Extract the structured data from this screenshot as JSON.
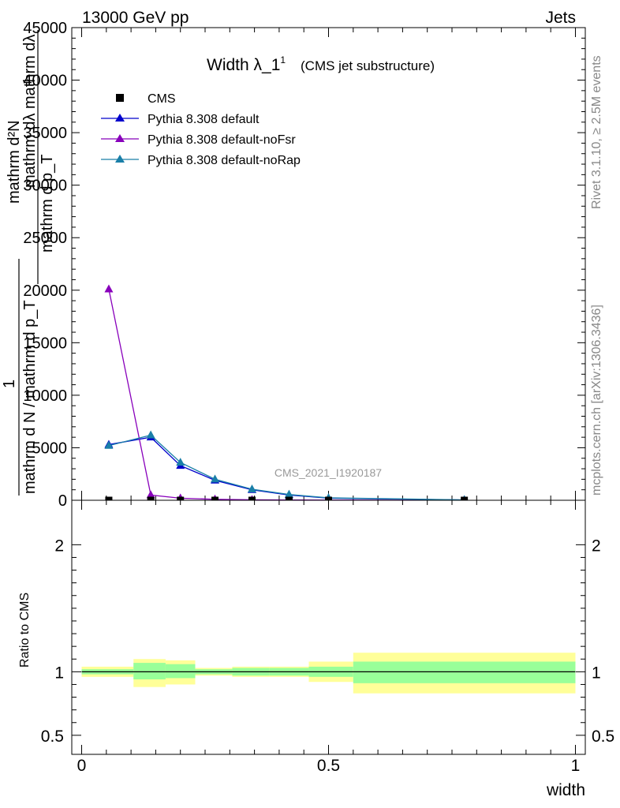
{
  "header": {
    "energy_label": "13000 GeV pp",
    "category_label": "Jets"
  },
  "side_labels": {
    "rivet": "Rivet 3.1.10, ≥ 2.5M events",
    "mcplots": "mcplots.cern.ch [arXiv:1306.3436]"
  },
  "watermark": "CMS_2021_I1920187",
  "chart_data": [
    {
      "type": "line",
      "panel": "main",
      "title": "Width λ_1",
      "title_sup": "1",
      "subtitle": "(CMS jet substructure)",
      "ylabel_numerator": "mathrm d²N",
      "ylabel_numerator_extra": "mathrm dλ mathrm dλ",
      "ylabel_denominator": "mathrm d p_T",
      "ylabel_prefix": "1",
      "ylabel_prefix_denominator": "mathrm d N / mathrm d p_T",
      "ylim": [
        0,
        45000
      ],
      "yticks": [
        "0",
        "5000",
        "10000",
        "15000",
        "20000",
        "25000",
        "30000",
        "35000",
        "40000",
        "45000"
      ],
      "ytick_values": [
        0,
        5000,
        10000,
        15000,
        20000,
        25000,
        30000,
        35000,
        40000,
        45000
      ],
      "xlim": [
        -0.02,
        1.02
      ],
      "legend_position": "top-left",
      "series": [
        {
          "name": "CMS",
          "color": "#000000",
          "marker": "square",
          "x": [
            0.055,
            0.14,
            0.2,
            0.27,
            0.345,
            0.42,
            0.5,
            0.775
          ],
          "y": [
            0,
            0,
            0,
            0,
            0,
            0,
            0,
            0
          ]
        },
        {
          "name": "Pythia 8.308 default",
          "color": "#0000cc",
          "marker": "triangle",
          "x": [
            0.055,
            0.14,
            0.2,
            0.27,
            0.345,
            0.42,
            0.5,
            0.775
          ],
          "y": [
            5300,
            6000,
            3300,
            1900,
            1000,
            500,
            200,
            30
          ]
        },
        {
          "name": "Pythia 8.308 default-noFsr",
          "color": "#8800bb",
          "marker": "triangle",
          "x": [
            0.055,
            0.14,
            0.2,
            0.27,
            0.345,
            0.42,
            0.5,
            0.775
          ],
          "y": [
            20100,
            500,
            200,
            90,
            45,
            25,
            15,
            5
          ]
        },
        {
          "name": "Pythia 8.308 default-noRap",
          "color": "#1a7fa8",
          "marker": "triangle",
          "x": [
            0.055,
            0.14,
            0.2,
            0.27,
            0.345,
            0.42,
            0.5,
            0.775
          ],
          "y": [
            5200,
            6200,
            3600,
            2000,
            1050,
            550,
            230,
            35
          ]
        }
      ]
    },
    {
      "type": "area",
      "panel": "ratio",
      "ylabel": "Ratio to CMS",
      "xlabel": "width",
      "ylim": [
        0.35,
        2.35
      ],
      "yticks": [
        "0.5",
        "1",
        "2"
      ],
      "ytick_values": [
        0.5,
        1,
        2
      ],
      "xticks": [
        "0",
        "0.5",
        "1"
      ],
      "xtick_values": [
        0,
        0.5,
        1
      ],
      "xlim": [
        -0.02,
        1.02
      ],
      "bins": [
        {
          "x0": 0.0,
          "x1": 0.105,
          "inner": [
            0.98,
            1.02
          ],
          "outer": [
            0.96,
            1.04
          ]
        },
        {
          "x0": 0.105,
          "x1": 0.17,
          "inner": [
            0.94,
            1.07
          ],
          "outer": [
            0.88,
            1.1
          ]
        },
        {
          "x0": 0.17,
          "x1": 0.23,
          "inner": [
            0.95,
            1.06
          ],
          "outer": [
            0.9,
            1.09
          ]
        },
        {
          "x0": 0.23,
          "x1": 0.305,
          "inner": [
            0.98,
            1.02
          ],
          "outer": [
            0.97,
            1.03
          ]
        },
        {
          "x0": 0.305,
          "x1": 0.38,
          "inner": [
            0.97,
            1.03
          ],
          "outer": [
            0.96,
            1.04
          ]
        },
        {
          "x0": 0.38,
          "x1": 0.46,
          "inner": [
            0.97,
            1.03
          ],
          "outer": [
            0.96,
            1.04
          ]
        },
        {
          "x0": 0.46,
          "x1": 0.55,
          "inner": [
            0.96,
            1.04
          ],
          "outer": [
            0.92,
            1.08
          ]
        },
        {
          "x0": 0.55,
          "x1": 1.0,
          "inner": [
            0.91,
            1.08
          ],
          "outer": [
            0.83,
            1.15
          ]
        }
      ],
      "band_colors": {
        "inner": "#99ff99",
        "outer": "#ffff99"
      }
    }
  ]
}
